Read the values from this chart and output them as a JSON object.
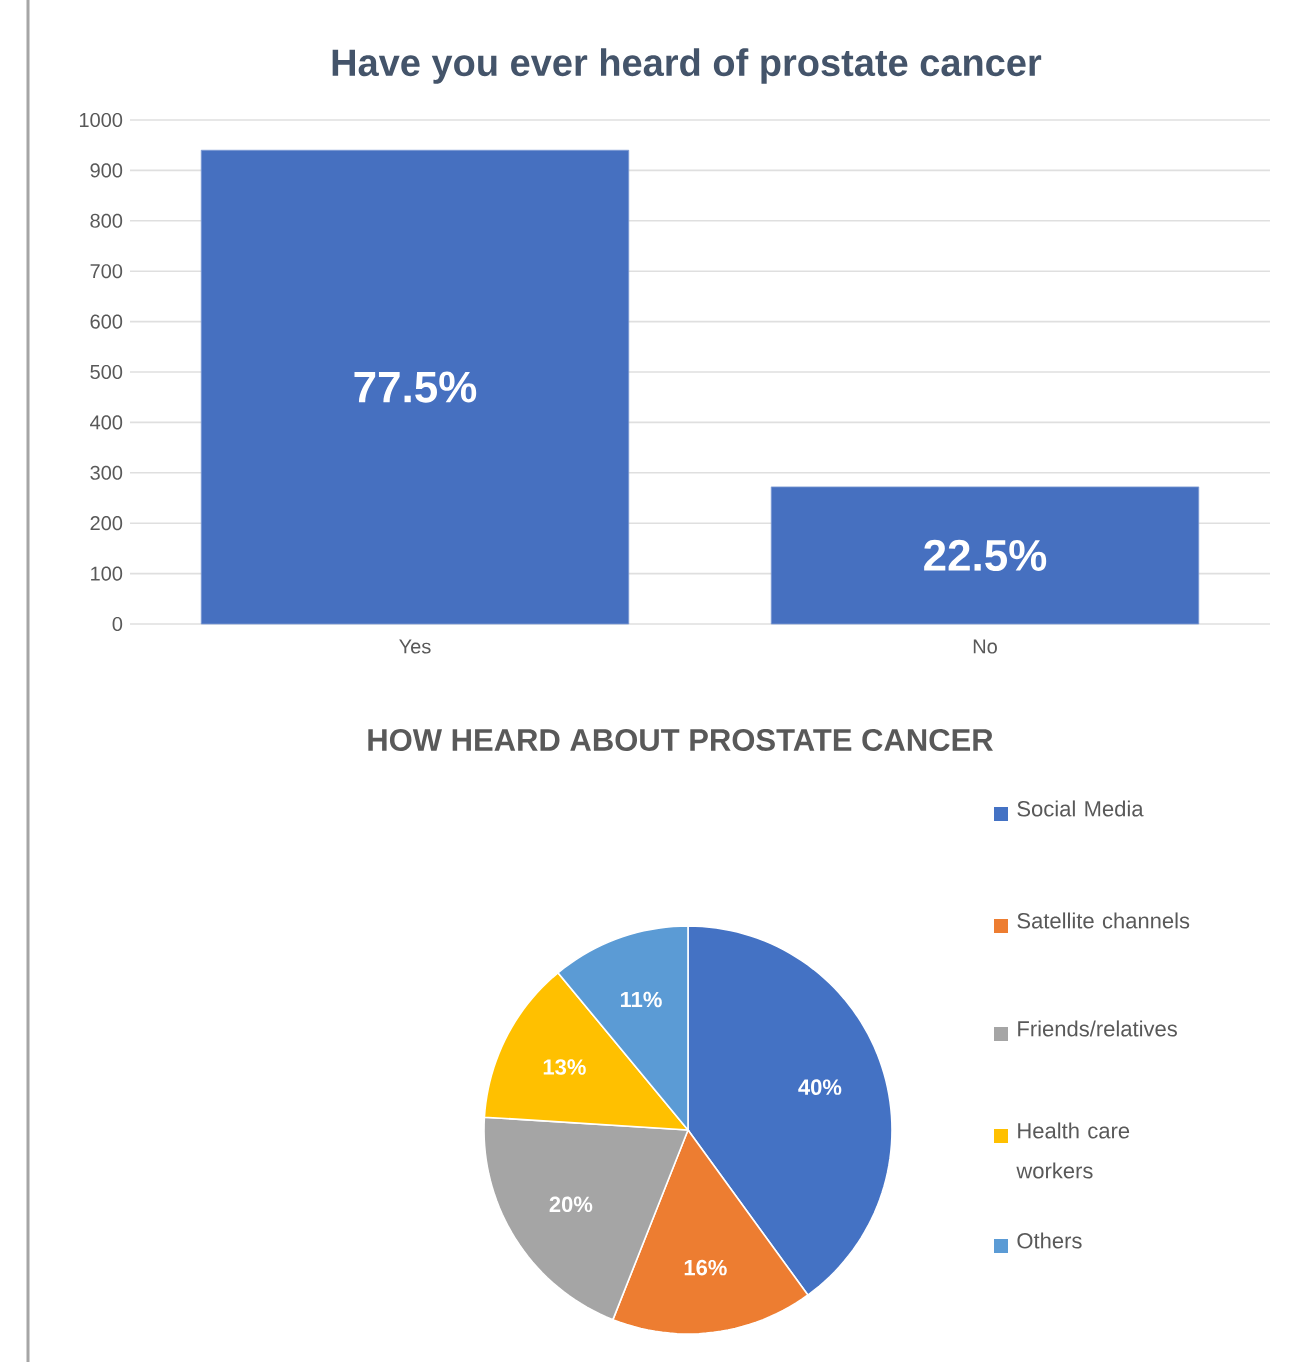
{
  "chart_data": [
    {
      "type": "bar",
      "title": "Have you ever heard of prostate cancer",
      "categories": [
        "Yes",
        "No"
      ],
      "values": [
        940,
        272
      ],
      "color": "#4670c0",
      "annotations": [
        "77.5%",
        "22.5%"
      ],
      "ylim": [
        0,
        1000
      ],
      "yticks": [
        0,
        100,
        200,
        300,
        400,
        500,
        600,
        700,
        800,
        900,
        1000
      ],
      "grid": "y"
    },
    {
      "type": "pie",
      "title": "HOW HEARD ABOUT PROSTATE CANCER",
      "categories": [
        "Social Media",
        "Satellite channels",
        "Friends/relatives",
        "Health care workers",
        "Others"
      ],
      "values": [
        40,
        16,
        20,
        13,
        11
      ],
      "colors": [
        "#4472c4",
        "#ed7d31",
        "#a5a5a5",
        "#ffc000",
        "#5b9bd5"
      ],
      "value_labels": [
        "40%",
        "16%",
        "20%",
        "13%",
        "11%"
      ],
      "legend": "right"
    }
  ]
}
